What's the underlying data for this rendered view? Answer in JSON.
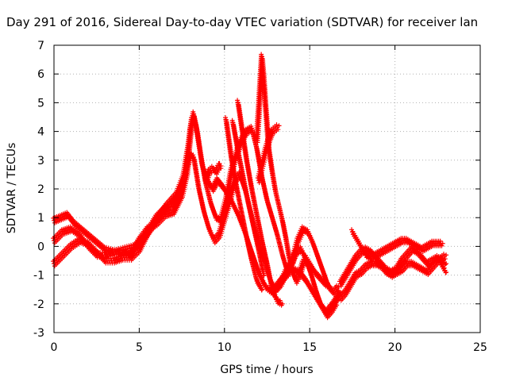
{
  "chart_data": {
    "type": "scatter",
    "title": "Day 291 of 2016, Sidereal Day-to-day VTEC variation (SDTVAR) for receiver lan",
    "xlabel": "GPS time / hours",
    "ylabel": "SDTVAR / TECUs",
    "xlim": [
      0,
      25
    ],
    "ylim": [
      -3,
      7
    ],
    "xticks": [
      "0",
      "5",
      "10",
      "15",
      "20",
      "25"
    ],
    "yticks": [
      "-3",
      "-2",
      "-1",
      "0",
      "1",
      "2",
      "3",
      "4",
      "5",
      "6",
      "7"
    ],
    "grid": true,
    "legend": "none",
    "marker": "plus",
    "color": "#ff0000",
    "series": [
      {
        "points": [
          [
            0,
            0.9
          ],
          [
            0.4,
            1.0
          ],
          [
            0.8,
            1.1
          ],
          [
            1.2,
            0.8
          ],
          [
            1.8,
            0.5
          ],
          [
            2.4,
            0.2
          ],
          [
            3,
            -0.1
          ],
          [
            3.6,
            -0.2
          ],
          [
            4.2,
            -0.1
          ],
          [
            4.8,
            0.0
          ],
          [
            5.4,
            0.4
          ],
          [
            6,
            0.9
          ],
          [
            6.6,
            1.4
          ],
          [
            7.2,
            1.8
          ],
          [
            7.6,
            2.4
          ],
          [
            7.9,
            3.5
          ],
          [
            8.1,
            4.4
          ],
          [
            8.3,
            4.3
          ],
          [
            8.6,
            3.2
          ],
          [
            8.9,
            2.2
          ],
          [
            9.2,
            1.5
          ],
          [
            9.5,
            1.0
          ],
          [
            9.8,
            0.9
          ],
          [
            10.1,
            1.6
          ],
          [
            10.4,
            2.6
          ],
          [
            10.7,
            3.2
          ],
          [
            11.0,
            3.7
          ],
          [
            11.3,
            4.0
          ],
          [
            11.6,
            4.1
          ],
          [
            11.9,
            3.4
          ],
          [
            12.2,
            2.4
          ],
          [
            12.5,
            1.6
          ],
          [
            12.8,
            1.0
          ],
          [
            13.1,
            0.4
          ],
          [
            13.4,
            -0.3
          ],
          [
            13.7,
            -0.9
          ],
          [
            14.0,
            -0.5
          ],
          [
            14.3,
            0.2
          ],
          [
            14.6,
            0.6
          ],
          [
            14.9,
            0.5
          ],
          [
            15.2,
            0.1
          ],
          [
            15.5,
            -0.4
          ],
          [
            15.8,
            -0.9
          ],
          [
            16.1,
            -1.4
          ],
          [
            16.4,
            -1.6
          ],
          [
            16.7,
            -1.4
          ]
        ]
      },
      {
        "points": [
          [
            0,
            -0.6
          ],
          [
            0.5,
            -0.3
          ],
          [
            1,
            0.0
          ],
          [
            1.5,
            0.2
          ],
          [
            2,
            0.1
          ],
          [
            2.5,
            -0.2
          ],
          [
            3,
            -0.5
          ],
          [
            3.5,
            -0.5
          ],
          [
            4,
            -0.4
          ],
          [
            4.5,
            -0.4
          ],
          [
            5,
            -0.1
          ],
          [
            5.5,
            0.5
          ],
          [
            6,
            1.0
          ],
          [
            6.5,
            1.3
          ],
          [
            7,
            1.5
          ],
          [
            7.5,
            2.0
          ],
          [
            7.8,
            2.8
          ],
          [
            8.0,
            3.2
          ],
          [
            8.2,
            3.1
          ],
          [
            8.5,
            2.0
          ],
          [
            8.8,
            1.2
          ],
          [
            9.1,
            0.6
          ],
          [
            9.4,
            0.2
          ],
          [
            9.7,
            0.4
          ],
          [
            10.0,
            1.0
          ],
          [
            10.3,
            1.6
          ],
          [
            10.6,
            2.3
          ],
          [
            10.9,
            2.5
          ],
          [
            11.2,
            2.0
          ],
          [
            11.5,
            1.3
          ],
          [
            11.8,
            0.6
          ],
          [
            12.1,
            0.0
          ],
          [
            12.4,
            -0.6
          ],
          [
            12.7,
            -1.2
          ],
          [
            13.0,
            -1.5
          ],
          [
            13.3,
            -1.3
          ],
          [
            13.6,
            -0.9
          ],
          [
            13.9,
            -0.6
          ],
          [
            14.2,
            -0.2
          ],
          [
            14.5,
            -0.1
          ],
          [
            14.8,
            -0.5
          ],
          [
            15.1,
            -1.0
          ],
          [
            15.4,
            -1.6
          ],
          [
            15.7,
            -2.1
          ],
          [
            16.0,
            -2.4
          ],
          [
            16.3,
            -2.2
          ],
          [
            16.6,
            -1.9
          ]
        ]
      },
      {
        "points": [
          [
            0,
            0.2
          ],
          [
            0.5,
            0.5
          ],
          [
            1,
            0.6
          ],
          [
            1.5,
            0.4
          ],
          [
            2,
            0.0
          ],
          [
            2.5,
            -0.3
          ],
          [
            3,
            -0.3
          ],
          [
            3.5,
            -0.2
          ],
          [
            4,
            -0.2
          ],
          [
            4.5,
            -0.3
          ],
          [
            5,
            0.2
          ],
          [
            5.5,
            0.6
          ],
          [
            6,
            0.8
          ],
          [
            6.5,
            1.1
          ],
          [
            7,
            1.2
          ],
          [
            7.5,
            1.8
          ],
          [
            7.8,
            2.6
          ],
          [
            8.0,
            4.0
          ],
          [
            8.2,
            4.6
          ],
          [
            8.4,
            4.0
          ],
          [
            8.7,
            2.8
          ],
          [
            9.0,
            2.3
          ],
          [
            9.3,
            2.0
          ],
          [
            9.6,
            2.3
          ],
          [
            10.0,
            2.0
          ],
          [
            10.4,
            1.6
          ],
          [
            10.8,
            1.1
          ],
          [
            11.2,
            0.5
          ],
          [
            11.6,
            -0.2
          ],
          [
            12.0,
            -0.9
          ],
          [
            12.4,
            -1.4
          ],
          [
            12.8,
            -1.6
          ],
          [
            13.2,
            -1.3
          ],
          [
            13.6,
            -1.0
          ],
          [
            14.0,
            -0.8
          ],
          [
            14.4,
            -0.9
          ],
          [
            14.8,
            -1.2
          ],
          [
            15.2,
            -1.6
          ],
          [
            15.6,
            -2.0
          ],
          [
            16.0,
            -2.3
          ],
          [
            16.4,
            -2.0
          ],
          [
            16.8,
            -1.6
          ]
        ]
      },
      {
        "points": [
          [
            10.8,
            5.0
          ],
          [
            11.0,
            4.2
          ],
          [
            11.3,
            3.0
          ],
          [
            11.6,
            2.0
          ],
          [
            11.9,
            1.1
          ],
          [
            12.2,
            0.2
          ],
          [
            12.5,
            -0.6
          ],
          [
            12.8,
            -1.5
          ],
          [
            13.1,
            -1.9
          ],
          [
            13.4,
            -2.0
          ]
        ]
      },
      {
        "points": [
          [
            10.5,
            4.3
          ],
          [
            10.8,
            3.3
          ],
          [
            11.1,
            2.4
          ],
          [
            11.4,
            1.5
          ],
          [
            11.7,
            0.7
          ],
          [
            12.0,
            -0.1
          ],
          [
            12.3,
            -1.0
          ]
        ]
      },
      {
        "points": [
          [
            10.1,
            4.4
          ],
          [
            10.4,
            3.1
          ],
          [
            10.7,
            2.1
          ],
          [
            11.0,
            1.2
          ],
          [
            11.3,
            0.3
          ],
          [
            11.6,
            -0.5
          ],
          [
            11.9,
            -1.2
          ],
          [
            12.2,
            -1.5
          ]
        ]
      },
      {
        "points": [
          [
            11.9,
            3.7
          ],
          [
            12.0,
            4.6
          ],
          [
            12.1,
            5.6
          ],
          [
            12.2,
            6.6
          ],
          [
            12.3,
            5.9
          ],
          [
            12.4,
            5.0
          ],
          [
            12.5,
            4.2
          ],
          [
            12.6,
            3.4
          ],
          [
            12.8,
            2.6
          ],
          [
            13.0,
            1.9
          ],
          [
            13.2,
            1.4
          ],
          [
            13.4,
            0.9
          ],
          [
            13.6,
            0.3
          ],
          [
            13.8,
            -0.4
          ],
          [
            14.0,
            -0.9
          ],
          [
            14.2,
            -1.2
          ],
          [
            14.4,
            -1.0
          ],
          [
            14.6,
            -0.6
          ],
          [
            14.8,
            -0.4
          ],
          [
            15.0,
            -0.6
          ],
          [
            15.3,
            -0.9
          ],
          [
            15.6,
            -1.1
          ],
          [
            15.9,
            -1.3
          ],
          [
            16.2,
            -1.4
          ]
        ]
      },
      {
        "points": [
          [
            12.0,
            2.3
          ],
          [
            12.2,
            2.8
          ],
          [
            12.4,
            3.3
          ],
          [
            12.6,
            3.7
          ],
          [
            12.8,
            4.0
          ],
          [
            13.0,
            4.1
          ],
          [
            13.2,
            4.2
          ]
        ]
      },
      {
        "points": [
          [
            8.9,
            2.3
          ],
          [
            9.1,
            2.6
          ],
          [
            9.3,
            2.7
          ],
          [
            9.5,
            2.6
          ],
          [
            9.7,
            2.8
          ],
          [
            9.8,
            2.8
          ]
        ]
      },
      {
        "points": [
          [
            16.8,
            -1.3
          ],
          [
            17.1,
            -1.0
          ],
          [
            17.4,
            -0.7
          ],
          [
            17.7,
            -0.4
          ],
          [
            18.0,
            -0.2
          ],
          [
            18.3,
            -0.1
          ],
          [
            18.6,
            -0.2
          ],
          [
            18.9,
            -0.4
          ],
          [
            19.2,
            -0.6
          ],
          [
            19.5,
            -0.8
          ],
          [
            19.8,
            -0.9
          ],
          [
            20.1,
            -0.8
          ],
          [
            20.4,
            -0.5
          ],
          [
            20.7,
            -0.3
          ],
          [
            21.0,
            -0.1
          ],
          [
            21.3,
            -0.2
          ],
          [
            21.6,
            -0.4
          ],
          [
            21.9,
            -0.6
          ],
          [
            22.2,
            -0.5
          ],
          [
            22.5,
            -0.4
          ],
          [
            22.8,
            -0.5
          ],
          [
            23.0,
            -0.6
          ]
        ]
      },
      {
        "points": [
          [
            16.8,
            -1.8
          ],
          [
            17.1,
            -1.6
          ],
          [
            17.4,
            -1.3
          ],
          [
            17.7,
            -1.0
          ],
          [
            18.0,
            -0.9
          ],
          [
            18.3,
            -0.7
          ],
          [
            18.6,
            -0.6
          ],
          [
            18.9,
            -0.6
          ],
          [
            19.2,
            -0.7
          ],
          [
            19.5,
            -0.9
          ],
          [
            19.8,
            -1.0
          ],
          [
            20.1,
            -0.9
          ],
          [
            20.4,
            -0.8
          ],
          [
            20.7,
            -0.6
          ],
          [
            21.0,
            -0.6
          ],
          [
            21.3,
            -0.7
          ],
          [
            21.6,
            -0.8
          ],
          [
            21.9,
            -0.9
          ],
          [
            22.2,
            -0.7
          ],
          [
            22.5,
            -0.5
          ],
          [
            22.8,
            -0.4
          ],
          [
            23.0,
            -0.3
          ]
        ]
      },
      {
        "points": [
          [
            17.5,
            0.5
          ],
          [
            17.7,
            0.3
          ],
          [
            17.9,
            0.1
          ],
          [
            18.1,
            -0.1
          ],
          [
            18.3,
            -0.3
          ],
          [
            18.6,
            -0.4
          ],
          [
            18.9,
            -0.3
          ],
          [
            19.2,
            -0.2
          ],
          [
            19.5,
            -0.1
          ],
          [
            19.8,
            0.0
          ],
          [
            20.1,
            0.1
          ],
          [
            20.4,
            0.2
          ],
          [
            20.7,
            0.2
          ],
          [
            21.0,
            0.1
          ],
          [
            21.3,
            0.0
          ],
          [
            21.6,
            -0.1
          ],
          [
            21.9,
            0.0
          ],
          [
            22.2,
            0.1
          ],
          [
            22.5,
            0.1
          ],
          [
            22.8,
            0.1
          ]
        ]
      },
      {
        "points": [
          [
            22.6,
            -0.5
          ],
          [
            22.8,
            -0.7
          ],
          [
            23.0,
            -0.9
          ]
        ]
      }
    ]
  }
}
